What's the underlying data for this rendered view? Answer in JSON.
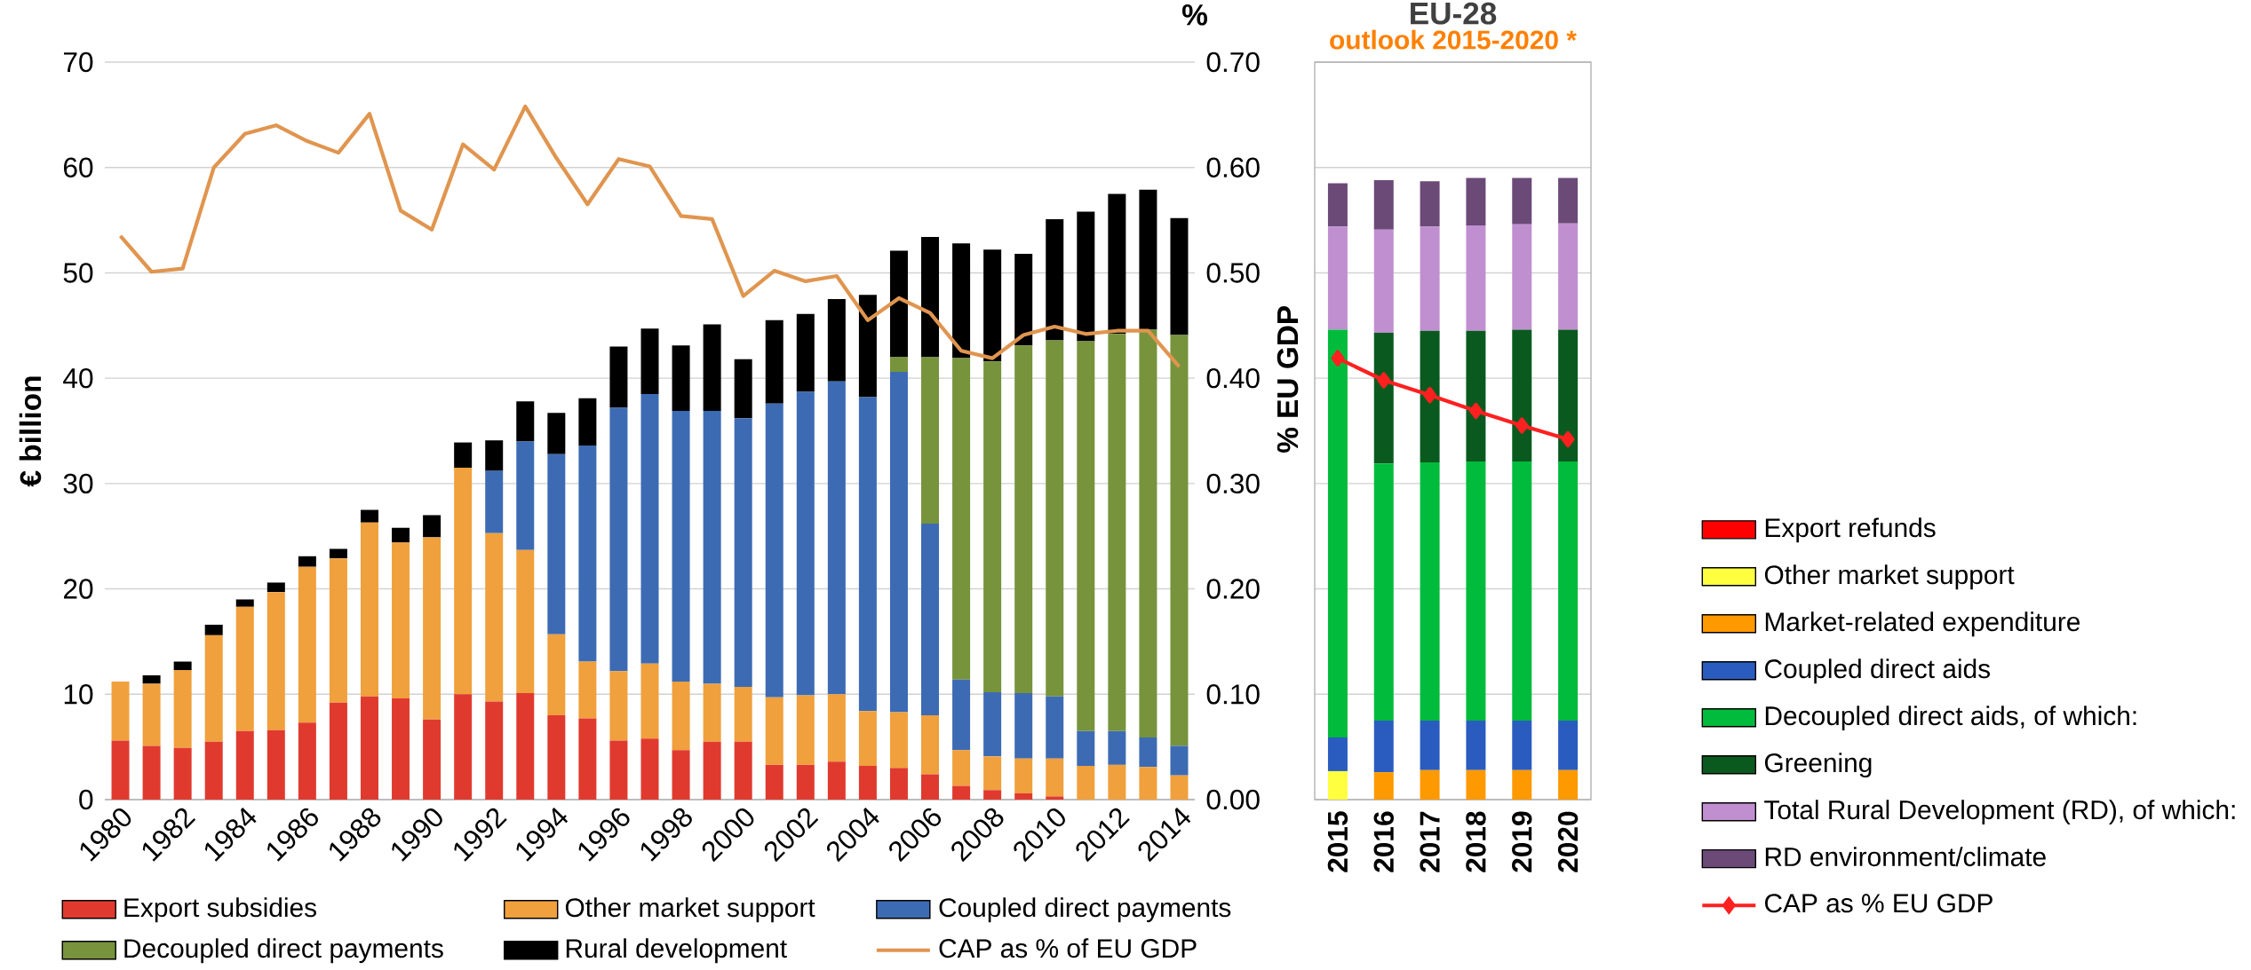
{
  "chart_data": [
    {
      "type": "bar",
      "stacked": true,
      "ylabel": "€ billion",
      "y2label": "%",
      "categories": [
        "1980",
        null,
        "1982",
        null,
        "1984",
        null,
        "1986",
        null,
        "1988",
        null,
        "1990",
        null,
        "1992",
        null,
        "1994",
        null,
        "1996",
        null,
        "1998",
        null,
        "2000",
        null,
        "2002",
        null,
        "2004",
        null,
        "2006",
        null,
        "2008",
        null,
        "2010",
        null,
        "2012",
        null,
        "2014"
      ],
      "ylim": [
        0,
        70
      ],
      "yticks": [
        0,
        10,
        20,
        30,
        40,
        50,
        60,
        70
      ],
      "y2lim": [
        0,
        0.7
      ],
      "y2ticks": [
        {
          "value": 0,
          "label": "0.00"
        },
        {
          "value": 0.1,
          "label": "0.10"
        },
        {
          "value": 0.2,
          "label": "0.20"
        },
        {
          "value": 0.3,
          "label": "0.30"
        },
        {
          "value": 0.4,
          "label": "0.40"
        },
        {
          "value": 0.5,
          "label": "0.50"
        },
        {
          "value": 0.6,
          "label": "0.60"
        },
        {
          "value": 0.7,
          "label": "0.70"
        }
      ],
      "grid": "y",
      "legend": "bottom",
      "series": [
        {
          "name": "Export subsidies",
          "color": "#e03a2f",
          "values": [
            5.6,
            5.1,
            4.9,
            5.5,
            6.5,
            6.6,
            7.3,
            9.2,
            9.8,
            9.6,
            7.6,
            10.0,
            9.3,
            10.1,
            8.0,
            7.7,
            5.6,
            5.8,
            4.7,
            5.5,
            5.5,
            3.3,
            3.3,
            3.6,
            3.2,
            3.0,
            2.4,
            1.3,
            0.9,
            0.6,
            0.3,
            0,
            0,
            0,
            0
          ]
        },
        {
          "name": "Other market support",
          "color": "#f0a03c",
          "values": [
            5.6,
            5.9,
            7.4,
            10.1,
            11.8,
            13.1,
            14.8,
            13.7,
            16.5,
            14.8,
            17.3,
            21.5,
            16.0,
            13.6,
            7.7,
            5.4,
            6.6,
            7.1,
            6.5,
            5.5,
            5.2,
            6.4,
            6.6,
            6.4,
            5.2,
            5.3,
            5.6,
            3.4,
            3.2,
            3.3,
            3.6,
            3.2,
            3.3,
            3.1,
            2.3
          ]
        },
        {
          "name": "Coupled direct payments",
          "color": "#3d6bb3",
          "values": [
            0,
            0,
            0,
            0,
            0,
            0,
            0,
            0,
            0,
            0,
            0,
            0,
            5.9,
            10.3,
            17.1,
            20.5,
            25.0,
            25.6,
            25.7,
            25.9,
            25.5,
            27.9,
            28.8,
            29.7,
            29.8,
            32.3,
            18.2,
            6.7,
            6.1,
            6.2,
            5.9,
            3.3,
            3.2,
            2.8,
            2.8
          ]
        },
        {
          "name": "Decoupled direct payments",
          "color": "#77933c",
          "values": [
            0,
            0,
            0,
            0,
            0,
            0,
            0,
            0,
            0,
            0,
            0,
            0,
            0,
            0,
            0,
            0,
            0,
            0,
            0,
            0,
            0,
            0,
            0,
            0,
            0,
            1.4,
            15.8,
            30.5,
            31.4,
            33.0,
            33.8,
            37.0,
            37.7,
            38.7,
            39.0
          ]
        },
        {
          "name": "Rural development",
          "color": "#000000",
          "values": [
            0,
            0.8,
            0.8,
            1.0,
            0.7,
            0.9,
            1.0,
            0.9,
            1.2,
            1.4,
            2.1,
            2.4,
            2.9,
            3.8,
            3.9,
            4.5,
            5.8,
            6.2,
            6.2,
            8.2,
            5.6,
            7.9,
            7.4,
            7.8,
            9.7,
            10.1,
            11.4,
            10.9,
            10.6,
            8.7,
            11.5,
            12.3,
            13.3,
            13.3,
            11.1
          ]
        },
        {
          "name": "CAP as % of EU GDP",
          "type": "line",
          "axis": "y2",
          "color": "#e0954f",
          "marker": "none",
          "values": [
            0.535,
            0.501,
            0.504,
            0.6,
            0.632,
            0.64,
            0.625,
            0.614,
            0.651,
            0.559,
            0.541,
            0.622,
            0.598,
            0.658,
            0.609,
            0.565,
            0.608,
            0.601,
            0.554,
            0.551,
            0.478,
            0.502,
            0.492,
            0.497,
            0.455,
            0.476,
            0.462,
            0.426,
            0.419,
            0.441,
            0.449,
            0.442,
            0.445,
            0.445,
            0.411
          ]
        }
      ]
    },
    {
      "type": "bar",
      "stacked": true,
      "title": "EU-28",
      "subtitle": "outlook 2015-2020 *",
      "y2label": "% EU GDP",
      "categories": [
        "2015",
        "2016",
        "2017",
        "2018",
        "2019",
        "2020"
      ],
      "ylim": [
        0,
        70
      ],
      "yticks": [
        0,
        10,
        20,
        30,
        40,
        50,
        60,
        70
      ],
      "y2lim": [
        0,
        0.7
      ],
      "tick_labels": "x",
      "grid": "y",
      "legend": "right",
      "series": [
        {
          "name": "Export refunds",
          "color": "#ff0000",
          "values": [
            0,
            0,
            0,
            0,
            0,
            0
          ]
        },
        {
          "name": "Other market support",
          "color": "#ffff40",
          "values": [
            2.7,
            0,
            0,
            0,
            0,
            0
          ]
        },
        {
          "name": "Market-related expenditure",
          "color": "#ff9900",
          "values": [
            0,
            2.6,
            2.8,
            2.8,
            2.8,
            2.8
          ]
        },
        {
          "name": "Coupled direct aids",
          "color": "#2a5cbf",
          "values": [
            3.2,
            4.9,
            4.7,
            4.7,
            4.7,
            4.7
          ]
        },
        {
          "name": "Decoupled direct aids, of which:",
          "color": "#00bb3c",
          "values": [
            38.7,
            24.4,
            24.5,
            24.6,
            24.6,
            24.6
          ]
        },
        {
          "name": "Greening",
          "color": "#0a5a20",
          "values": [
            0,
            12.4,
            12.5,
            12.4,
            12.5,
            12.5
          ]
        },
        {
          "name": "Total Rural Development (RD), of which:",
          "color": "#c08fd0",
          "values": [
            9.8,
            9.8,
            9.9,
            10.0,
            10.0,
            10.1
          ]
        },
        {
          "name": "RD environment/climate",
          "color": "#6b4a78",
          "values": [
            4.1,
            4.7,
            4.3,
            4.5,
            4.4,
            4.3
          ]
        },
        {
          "name": "CAP as % EU GDP",
          "type": "line",
          "axis": "y2",
          "color": "#ff2020",
          "marker": "diamond",
          "values": [
            0.419,
            0.398,
            0.384,
            0.369,
            0.355,
            0.342
          ]
        }
      ]
    }
  ]
}
